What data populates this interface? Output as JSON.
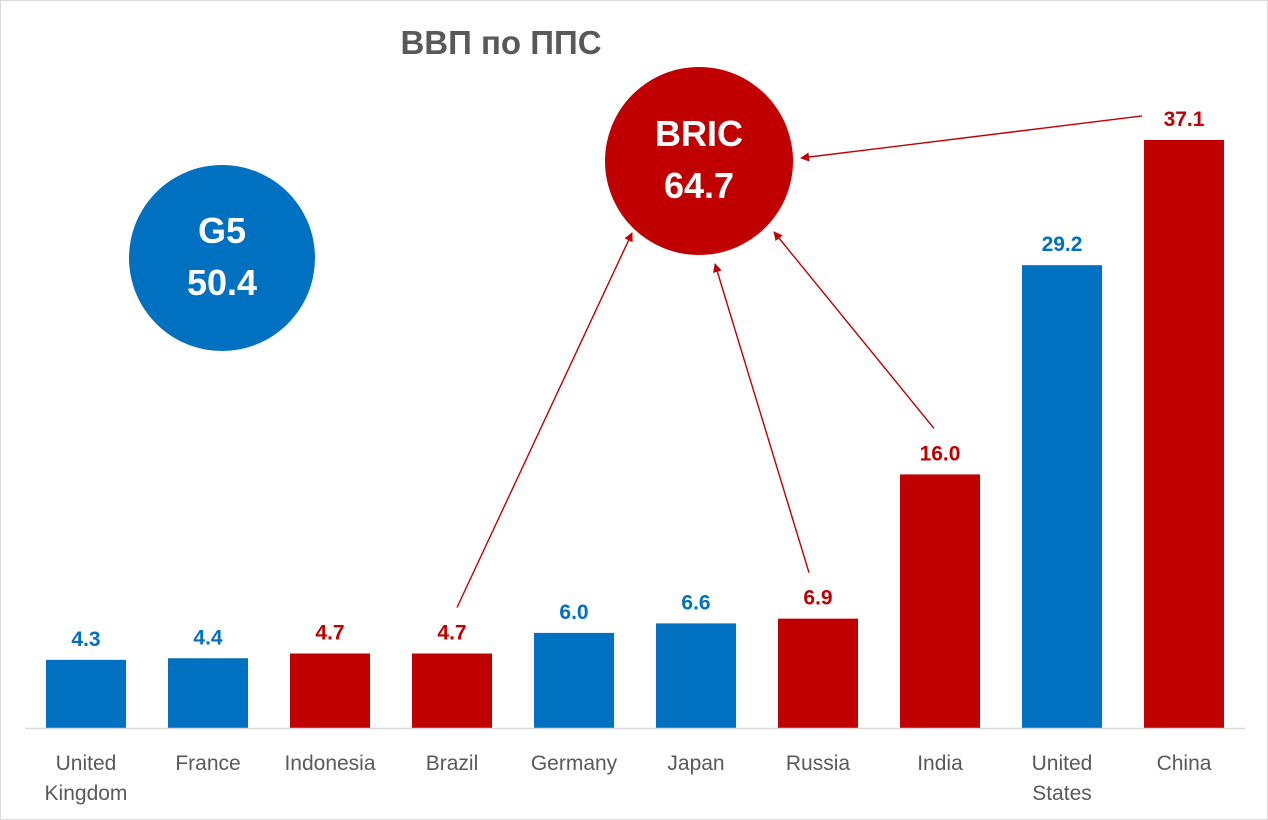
{
  "colors": {
    "g5": "#0070c0",
    "bric": "#c00000",
    "axis": "#d9d9d9",
    "text": "#595959",
    "background": "#ffffff"
  },
  "chart_data": {
    "type": "bar",
    "title": "ВВП по ППС",
    "xlabel": "",
    "ylabel": "",
    "ylim": [
      0,
      40
    ],
    "grid": false,
    "legend": "none",
    "categories": [
      [
        "United",
        "Kingdom"
      ],
      [
        "France"
      ],
      [
        "Indonesia"
      ],
      [
        "Brazil"
      ],
      [
        "Germany"
      ],
      [
        "Japan"
      ],
      [
        "Russia"
      ],
      [
        "India"
      ],
      [
        "United",
        "States"
      ],
      [
        "China"
      ]
    ],
    "values": [
      4.3,
      4.4,
      4.7,
      4.7,
      6.0,
      6.6,
      6.9,
      16.0,
      29.2,
      37.1
    ],
    "labels": [
      "4.3",
      "4.4",
      "4.7",
      "4.7",
      "6.0",
      "6.6",
      "6.9",
      "16.0",
      "29.2",
      "37.1"
    ],
    "groups": [
      "g5",
      "g5",
      "bric",
      "bric",
      "g5",
      "g5",
      "bric",
      "bric",
      "g5",
      "bric"
    ],
    "annotations": [
      {
        "name": "G5",
        "value": "50.4",
        "group": "g5"
      },
      {
        "name": "BRIC",
        "value": "64.7",
        "group": "bric",
        "arrows_from": [
          3,
          6,
          7,
          9
        ]
      }
    ]
  }
}
